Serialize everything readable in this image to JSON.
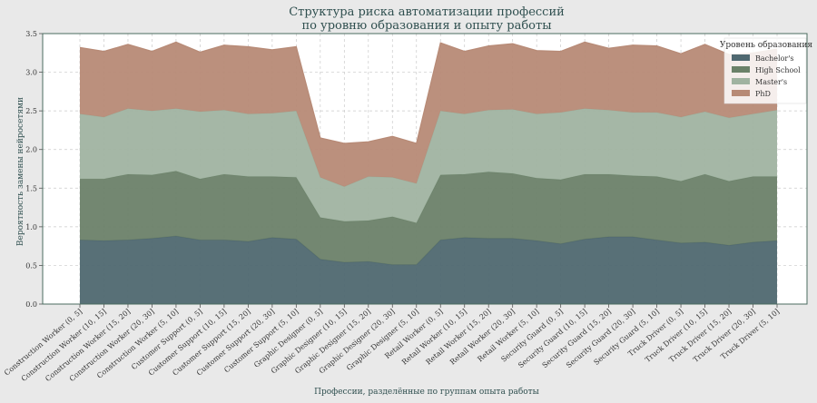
{
  "chart_data": {
    "type": "area",
    "stacked": true,
    "title_lines": [
      "Структура риска автоматизации профессий",
      "по уровню образования и опыту работы"
    ],
    "xlabel": "Профессии, разделённые по группам опыта работы",
    "ylabel": "Вероятность замены нейросетями",
    "ylim": [
      0,
      3.5
    ],
    "yticks": [
      "0.0",
      "0.5",
      "1.0",
      "1.5",
      "2.0",
      "2.5",
      "3.0",
      "3.5"
    ],
    "legend_title": "Уровень образования",
    "legend_position": "top-right",
    "categories": [
      "Construction Worker (0, 5]",
      "Construction Worker (10, 15]",
      "Construction Worker (15, 20]",
      "Construction Worker (20, 30]",
      "Construction Worker (5, 10]",
      "Customer Support (0, 5]",
      "Customer Support (10, 15]",
      "Customer Support (15, 20]",
      "Customer Support (20, 30]",
      "Customer Support (5, 10]",
      "Graphic Designer (0, 5]",
      "Graphic Designer (10, 15]",
      "Graphic Designer (15, 20]",
      "Graphic Designer (20, 30]",
      "Graphic Designer (5, 10]",
      "Retail Worker (0, 5]",
      "Retail Worker (10, 15]",
      "Retail Worker (15, 20]",
      "Retail Worker (20, 30]",
      "Retail Worker (5, 10]",
      "Security Guard (0, 5]",
      "Security Guard (10, 15]",
      "Security Guard (15, 20]",
      "Security Guard (20, 30]",
      "Security Guard (5, 10]",
      "Truck Driver (0, 5]",
      "Truck Driver (10, 15]",
      "Truck Driver (15, 20]",
      "Truck Driver (20, 30]",
      "Truck Driver (5, 10]"
    ],
    "series": [
      {
        "name": "Bachelor's",
        "color": "#4f6870",
        "values": [
          0.83,
          0.82,
          0.83,
          0.85,
          0.88,
          0.83,
          0.83,
          0.81,
          0.86,
          0.84,
          0.58,
          0.54,
          0.55,
          0.51,
          0.51,
          0.83,
          0.86,
          0.85,
          0.85,
          0.82,
          0.78,
          0.84,
          0.87,
          0.87,
          0.83,
          0.79,
          0.8,
          0.76,
          0.8,
          0.82
        ]
      },
      {
        "name": "High School",
        "color": "#6b8169",
        "values": [
          0.79,
          0.8,
          0.85,
          0.82,
          0.84,
          0.79,
          0.85,
          0.84,
          0.79,
          0.8,
          0.54,
          0.53,
          0.53,
          0.62,
          0.54,
          0.84,
          0.82,
          0.86,
          0.84,
          0.81,
          0.83,
          0.84,
          0.81,
          0.79,
          0.82,
          0.8,
          0.88,
          0.83,
          0.85,
          0.83
        ]
      },
      {
        "name": "Master's",
        "color": "#a0b3a1",
        "values": [
          0.84,
          0.8,
          0.85,
          0.83,
          0.81,
          0.87,
          0.83,
          0.81,
          0.82,
          0.86,
          0.52,
          0.45,
          0.57,
          0.51,
          0.51,
          0.83,
          0.78,
          0.8,
          0.83,
          0.83,
          0.87,
          0.85,
          0.83,
          0.82,
          0.83,
          0.83,
          0.81,
          0.82,
          0.81,
          0.86
        ]
      },
      {
        "name": "PhD",
        "color": "#b78a76",
        "values": [
          0.86,
          0.85,
          0.83,
          0.77,
          0.86,
          0.77,
          0.84,
          0.87,
          0.82,
          0.83,
          0.51,
          0.56,
          0.45,
          0.53,
          0.52,
          0.88,
          0.81,
          0.83,
          0.85,
          0.82,
          0.79,
          0.86,
          0.8,
          0.87,
          0.86,
          0.82,
          0.87,
          0.82,
          0.79,
          0.79
        ]
      }
    ]
  }
}
